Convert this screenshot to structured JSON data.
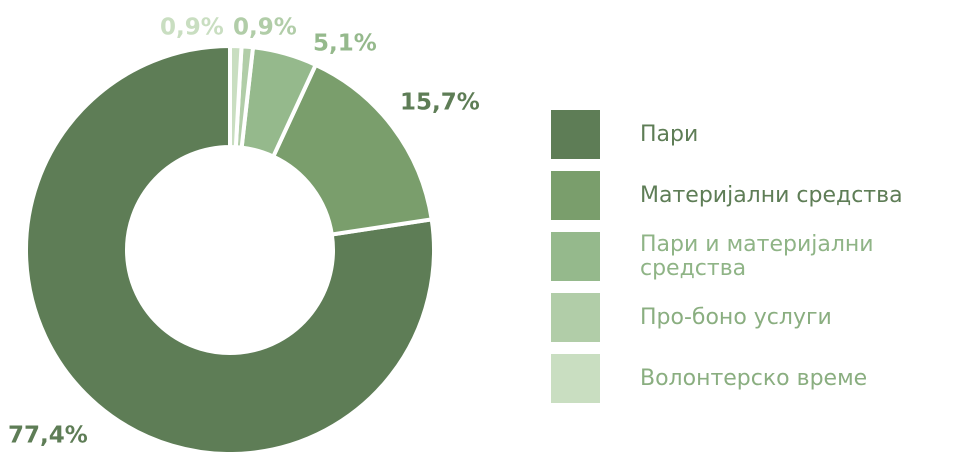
{
  "chart_data": {
    "type": "donut",
    "series": [
      {
        "name": "Пари",
        "color": "#5e7d56",
        "values": [
          77.4
        ],
        "value_labels": [
          "77,4%"
        ]
      },
      {
        "name": "Материјални средства",
        "color": "#7a9e6c",
        "values": [
          15.7
        ],
        "value_labels": [
          "15,7%"
        ]
      },
      {
        "name": "Пари и материјални средства",
        "color": "#95b98c",
        "values": [
          5.1
        ],
        "value_labels": [
          "5,1%"
        ]
      },
      {
        "name": "Про-боно услуги",
        "color": "#b1cda8",
        "values": [
          0.9
        ],
        "value_labels": [
          "0,9%"
        ]
      },
      {
        "name": "Волонтерско време",
        "color": "#c9dec1",
        "values": [
          0.9
        ],
        "value_labels": [
          "0,9%"
        ]
      }
    ]
  }
}
